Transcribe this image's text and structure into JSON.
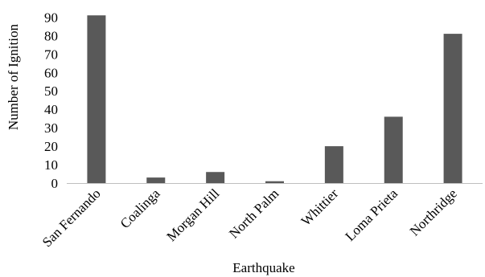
{
  "chart_data": {
    "type": "bar",
    "categories": [
      "San Fernando",
      "Coalinga",
      "Morgan Hill",
      "North Palm",
      "Whittier",
      "Loma Prieta",
      "Northridge"
    ],
    "values": [
      91,
      3,
      6,
      1,
      20,
      36,
      81
    ],
    "xlabel": "Earthquake",
    "ylabel": "Number of Ignition",
    "ylim": [
      0,
      90
    ],
    "yticks": [
      0,
      10,
      20,
      30,
      40,
      50,
      60,
      70,
      80,
      90
    ],
    "grid": false,
    "legend": "none",
    "bar_color": "#595959"
  }
}
